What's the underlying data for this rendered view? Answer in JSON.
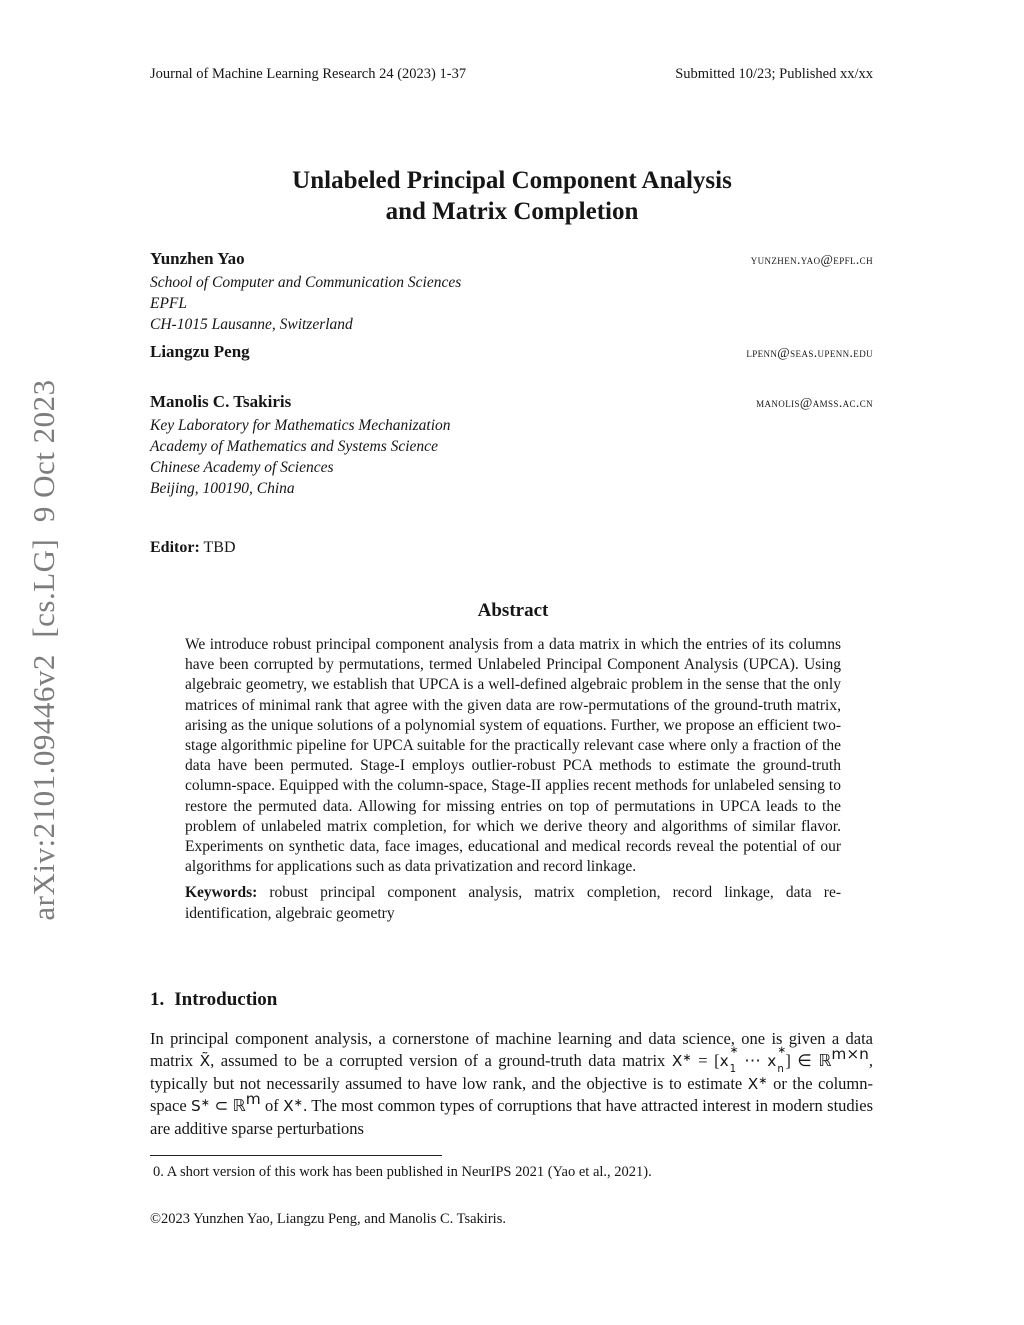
{
  "page": {
    "arxiv_watermark": "arXiv:2101.09446v2  [cs.LG]  9 Oct 2023",
    "header_left": "Journal of Machine Learning Research 24 (2023) 1-37",
    "header_right": "Submitted 10/23; Published xx/xx",
    "title_line1": "Unlabeled Principal Component Analysis",
    "title_line2": "and Matrix Completion"
  },
  "authors": [
    {
      "name": "Yunzhen Yao",
      "email": "yunzhen.yao@epfl.ch",
      "affiliation": [
        "School of Computer and Communication Sciences",
        "EPFL",
        "CH-1015 Lausanne, Switzerland"
      ]
    },
    {
      "name": "Liangzu Peng",
      "email": "lpenn@seas.upenn.edu",
      "affiliation": []
    },
    {
      "name": "Manolis C. Tsakiris",
      "email": "manolis@amss.ac.cn",
      "affiliation": [
        "Key Laboratory for Mathematics Mechanization",
        "Academy of Mathematics and Systems Science",
        "Chinese Academy of Sciences",
        "Beijing, 100190, China"
      ]
    }
  ],
  "editor": {
    "label": "Editor:",
    "value": "TBD"
  },
  "abstract": {
    "heading": "Abstract",
    "body": "We introduce robust principal component analysis from a data matrix in which the entries of its columns have been corrupted by permutations, termed Unlabeled Principal Component Analysis (UPCA). Using algebraic geometry, we establish that UPCA is a well-defined algebraic problem in the sense that the only matrices of minimal rank that agree with the given data are row-permutations of the ground-truth matrix, arising as the unique solutions of a polynomial system of equations. Further, we propose an efficient two-stage algorithmic pipeline for UPCA suitable for the practically relevant case where only a fraction of the data have been permuted. Stage-I employs outlier-robust PCA methods to estimate the ground-truth column-space. Equipped with the column-space, Stage-II applies recent methods for unlabeled sensing to restore the permuted data. Allowing for missing entries on top of permutations in UPCA leads to the problem of unlabeled matrix completion, for which we derive theory and algorithms of similar flavor. Experiments on synthetic data, face images, educational and medical records reveal the potential of our algorithms for applications such as data privatization and record linkage.",
    "keywords_label": "Keywords:",
    "keywords": "robust principal component analysis, matrix completion, record linkage, data re-identification, algebraic geometry"
  },
  "introduction": {
    "number": "1.",
    "title": "Introduction",
    "paragraph_html": "In principal component analysis, a cornerstone of machine learning and data science, one is given a data matrix <span class='ms'>X&#771;</span>, assumed to be a corrupted version of a ground-truth data matrix <span class='ms'>X</span><sup>&#8727;</sup> = [<span class='ms'>x</span><span class='stk'><sup>&#8727;</sup><sub>1</sub></span> &#8943; <span class='ms'>x</span><span class='stk'><sup>&#8727;</sup><sub>n</sub></span>] &#8712; &#8477;<sup class='ms'>m&#215;n</sup>, typically but not necessarily assumed to have low rank, and the objective is to estimate <span class='ms'>X</span><sup>&#8727;</sup> or the column-space <span class='ms'>S</span><sup>&#8727;</sup> &#8834; &#8477;<sup class='ms'>m</sup> of <span class='ms'>X</span><sup>&#8727;</sup>. The most common types of corruptions that have attracted interest in modern studies are additive sparse perturbations"
  },
  "footnote": "0. A short version of this work has been published in NeurIPS 2021 (Yao et al., 2021).",
  "copyright": "©2023 Yunzhen Yao, Liangzu Peng, and Manolis C. Tsakiris."
}
